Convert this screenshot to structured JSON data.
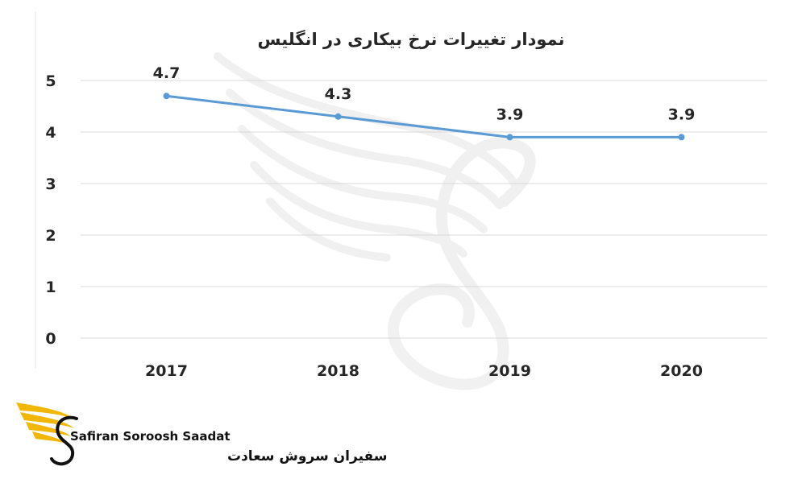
{
  "chart_data": {
    "type": "line",
    "title": "نمودار تغییرات نرخ بیکاری در انگلیس",
    "xlabel": "",
    "ylabel": "",
    "categories": [
      "2017",
      "2018",
      "2019",
      "2020"
    ],
    "series": [
      {
        "values": [
          4.7,
          4.3,
          3.9,
          3.9
        ]
      }
    ],
    "data_labels": [
      "4.7",
      "4.3",
      "3.9",
      "3.9"
    ],
    "y_ticks": [
      "0",
      "1",
      "2",
      "3",
      "4",
      "5"
    ],
    "ylim": [
      0,
      5
    ],
    "grid": "horizontal",
    "legend": "none",
    "line_color": "#5b9bd5"
  },
  "branding": {
    "logo_text_latin": "Safiran Soroosh Saadat",
    "logo_text_persian": "سفیران سروش سعادت",
    "logo_accent_color": "#f2b705",
    "watermark": "swan-s-watermark"
  }
}
